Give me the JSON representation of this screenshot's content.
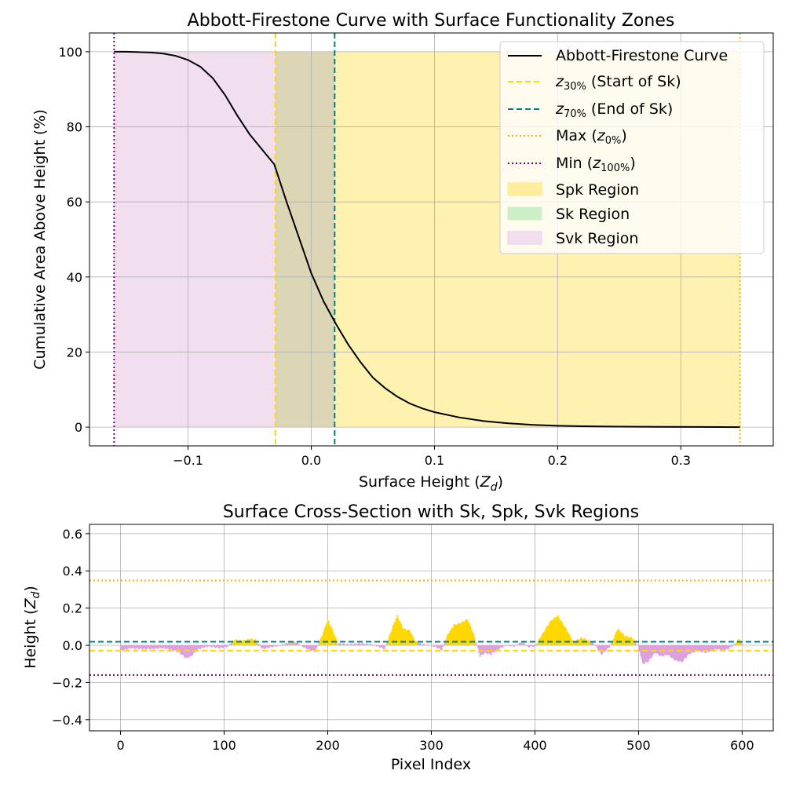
{
  "top_chart": {
    "title": "Abbott-Firestone Curve with Surface Functionality Zones",
    "xlabel": "Surface Height (",
    "xlabel_var": "Z",
    "xlabel_sub": "d",
    "xlabel_end": ")",
    "ylabel": "Cumulative Area Above Height (%)",
    "xticks": [
      "−0.1",
      "0.0",
      "0.1",
      "0.2",
      "0.3"
    ],
    "yticks": [
      "0",
      "20",
      "40",
      "60",
      "80",
      "100"
    ]
  },
  "bottom_chart": {
    "title": "Surface Cross-Section with Sk, Spk, Svk Regions",
    "xlabel": "Pixel Index",
    "ylabel": "Height (",
    "ylabel_var": "Z",
    "ylabel_sub": "d",
    "ylabel_end": ")",
    "xticks": [
      "0",
      "100",
      "200",
      "300",
      "400",
      "500",
      "600"
    ],
    "yticks": [
      "−0.4",
      "−0.2",
      "0.0",
      "0.2",
      "0.4",
      "0.6"
    ]
  },
  "legend": {
    "curve": "Abbott-Firestone Curve",
    "z30_var": "z",
    "z30_sub": "30%",
    "z30_text": " (Start of Sk)",
    "z70_var": "z",
    "z70_sub": "70%",
    "z70_text": " (End of Sk)",
    "max_text": "Max (",
    "max_var": "z",
    "max_sub": "0%",
    "max_end": ")",
    "min_text": "Min (",
    "min_var": "z",
    "min_sub": "100%",
    "min_end": ")",
    "spk": "Spk Region",
    "sk": "Sk Region",
    "svk": "Svk Region"
  },
  "colors": {
    "curve": "#000000",
    "z30": "#FFD700",
    "z70": "#008080",
    "max": "#FFB300",
    "min": "#800080",
    "spk_fill": "#FFF1B0",
    "sk_fill": "#DDD6B6",
    "svk_fill": "#F1DFF0",
    "spk_bar": "#FFD700",
    "svk_bar": "#DDA0DD"
  },
  "chart_data": [
    {
      "type": "line",
      "title": "Abbott-Firestone Curve with Surface Functionality Zones",
      "xlabel": "Surface Height (Zd)",
      "ylabel": "Cumulative Area Above Height (%)",
      "xlim": [
        -0.18,
        0.375
      ],
      "ylim": [
        -5,
        105
      ],
      "grid": true,
      "legend_position": "top-right",
      "series": [
        {
          "name": "Abbott-Firestone Curve",
          "x": [
            -0.16,
            -0.15,
            -0.14,
            -0.13,
            -0.12,
            -0.11,
            -0.1,
            -0.09,
            -0.08,
            -0.07,
            -0.06,
            -0.05,
            -0.04,
            -0.03,
            -0.02,
            -0.01,
            0.0,
            0.01,
            0.02,
            0.03,
            0.04,
            0.05,
            0.06,
            0.07,
            0.08,
            0.09,
            0.1,
            0.12,
            0.14,
            0.16,
            0.18,
            0.2,
            0.22,
            0.25,
            0.28,
            0.31,
            0.348
          ],
          "y": [
            100,
            100,
            99.9,
            99.8,
            99.5,
            98.9,
            97.8,
            96.0,
            93.0,
            88.5,
            83.0,
            78.0,
            74.0,
            70.0,
            60.0,
            50.5,
            41.0,
            33.5,
            27.5,
            22.0,
            17.3,
            13.2,
            10.4,
            8.1,
            6.3,
            5.0,
            4.0,
            2.6,
            1.6,
            1.0,
            0.6,
            0.35,
            0.22,
            0.12,
            0.06,
            0.03,
            0.0
          ]
        }
      ],
      "vlines": [
        {
          "name": "z30% (Start of Sk)",
          "x": -0.029,
          "style": "dashed"
        },
        {
          "name": "z70% (End of Sk)",
          "x": 0.019,
          "style": "dashed"
        },
        {
          "name": "Max (z0%)",
          "x": 0.348,
          "style": "dotted"
        },
        {
          "name": "Min (z100%)",
          "x": -0.16,
          "style": "dotted"
        }
      ],
      "regions": [
        {
          "name": "Spk Region",
          "x_range": [
            -0.029,
            0.348
          ],
          "y_range": [
            0,
            100
          ]
        },
        {
          "name": "Sk Region",
          "x_range": [
            -0.029,
            0.019
          ],
          "y_range": [
            0,
            100
          ]
        },
        {
          "name": "Svk Region",
          "x_range": [
            -0.16,
            -0.029
          ],
          "y_range": [
            0,
            100
          ]
        }
      ]
    },
    {
      "type": "bar",
      "title": "Surface Cross-Section with Sk, Spk, Svk Regions",
      "xlabel": "Pixel Index",
      "ylabel": "Height (Zd)",
      "xlim": [
        -30,
        630
      ],
      "ylim": [
        -0.46,
        0.65
      ],
      "grid": true,
      "hlines": [
        {
          "name": "z70%",
          "y": 0.019
        },
        {
          "name": "z30%",
          "y": -0.029
        },
        {
          "name": "Max",
          "y": 0.348
        },
        {
          "name": "Min",
          "y": -0.16
        }
      ],
      "profile_points": [
        [
          0,
          -0.03
        ],
        [
          10,
          -0.015
        ],
        [
          20,
          -0.02
        ],
        [
          30,
          -0.02
        ],
        [
          40,
          -0.015
        ],
        [
          50,
          -0.025
        ],
        [
          57,
          -0.04
        ],
        [
          63,
          -0.07
        ],
        [
          68,
          -0.06
        ],
        [
          75,
          -0.02
        ],
        [
          85,
          -0.005
        ],
        [
          95,
          -0.015
        ],
        [
          102,
          -0.01
        ],
        [
          110,
          0.03
        ],
        [
          118,
          0.025
        ],
        [
          125,
          0.035
        ],
        [
          130,
          0.03
        ],
        [
          137,
          -0.02
        ],
        [
          145,
          -0.01
        ],
        [
          155,
          0.0
        ],
        [
          165,
          0.02
        ],
        [
          170,
          0.015
        ],
        [
          178,
          -0.015
        ],
        [
          188,
          -0.035
        ],
        [
          195,
          0.06
        ],
        [
          200,
          0.14
        ],
        [
          204,
          0.09
        ],
        [
          210,
          0.01
        ],
        [
          220,
          0.005
        ],
        [
          232,
          0.01
        ],
        [
          242,
          0.005
        ],
        [
          250,
          -0.01
        ],
        [
          255,
          -0.02
        ],
        [
          262,
          0.09
        ],
        [
          267,
          0.16
        ],
        [
          273,
          0.09
        ],
        [
          279,
          0.08
        ],
        [
          285,
          0.02
        ],
        [
          292,
          0.005
        ],
        [
          300,
          0.0
        ],
        [
          310,
          -0.025
        ],
        [
          316,
          0.06
        ],
        [
          322,
          0.11
        ],
        [
          328,
          0.12
        ],
        [
          335,
          0.14
        ],
        [
          341,
          0.06
        ],
        [
          347,
          -0.06
        ],
        [
          352,
          -0.04
        ],
        [
          357,
          -0.05
        ],
        [
          365,
          -0.02
        ],
        [
          372,
          0.0
        ],
        [
          380,
          -0.005
        ],
        [
          388,
          0.02
        ],
        [
          393,
          -0.01
        ],
        [
          400,
          -0.005
        ],
        [
          407,
          0.06
        ],
        [
          415,
          0.13
        ],
        [
          422,
          0.16
        ],
        [
          430,
          0.09
        ],
        [
          437,
          0.02
        ],
        [
          445,
          0.04
        ],
        [
          450,
          0.03
        ],
        [
          457,
          0.01
        ],
        [
          464,
          -0.05
        ],
        [
          472,
          -0.01
        ],
        [
          480,
          0.09
        ],
        [
          487,
          0.05
        ],
        [
          494,
          0.04
        ],
        [
          500,
          -0.01
        ],
        [
          504,
          -0.1
        ],
        [
          509,
          -0.09
        ],
        [
          516,
          -0.04
        ],
        [
          522,
          -0.06
        ],
        [
          528,
          -0.05
        ],
        [
          535,
          -0.08
        ],
        [
          542,
          -0.09
        ],
        [
          548,
          -0.05
        ],
        [
          556,
          -0.03
        ],
        [
          565,
          -0.04
        ],
        [
          575,
          -0.02
        ],
        [
          583,
          -0.03
        ],
        [
          592,
          0.0
        ],
        [
          597,
          0.035
        ],
        [
          600,
          0.01
        ]
      ]
    }
  ]
}
